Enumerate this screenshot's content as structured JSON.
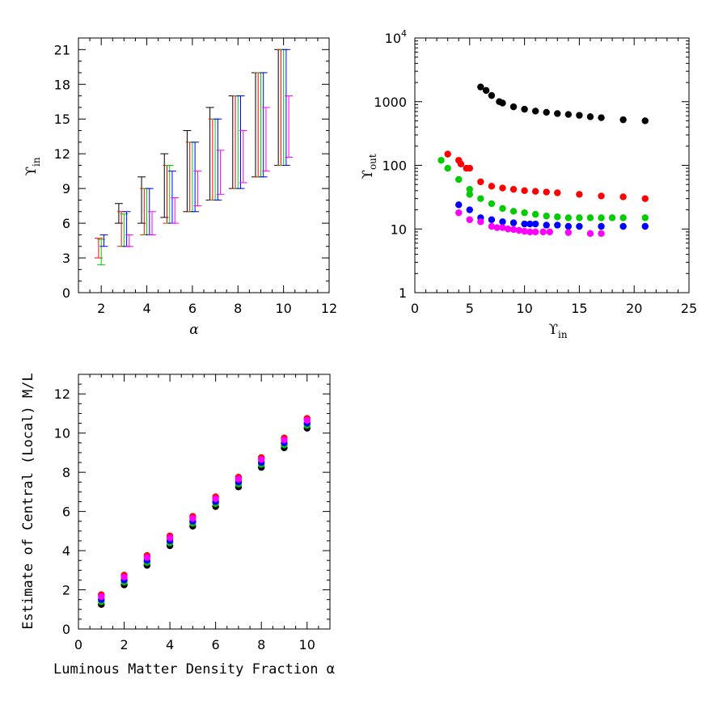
{
  "chart_data": [
    {
      "type": "errorbar",
      "xlabel": "α",
      "ylabel": "ϒ",
      "ylabel_sub": "in",
      "xlim": [
        1,
        12
      ],
      "ylim": [
        0,
        22
      ],
      "xticks": [
        2,
        4,
        6,
        8,
        10,
        12
      ],
      "yticks": [
        0,
        3,
        6,
        9,
        12,
        15,
        18,
        21
      ],
      "series_colors": [
        "#ff0000",
        "#00cc00",
        "#0000ff",
        "#ff00ff",
        "#000000"
      ],
      "groups": [
        {
          "alpha": 2,
          "bars": [
            {
              "c": "#ff0000",
              "lo": 3.0,
              "hi": 4.7
            },
            {
              "c": "#00cc00",
              "lo": 2.4,
              "hi": 4.6
            },
            {
              "c": "#0000ff",
              "lo": 4.0,
              "hi": 5.0
            }
          ]
        },
        {
          "alpha": 3,
          "bars": [
            {
              "c": "#000000",
              "lo": 6.0,
              "hi": 7.7
            },
            {
              "c": "#ff0000",
              "lo": 4.0,
              "hi": 7.0
            },
            {
              "c": "#00cc00",
              "lo": 4.0,
              "hi": 6.8
            },
            {
              "c": "#0000ff",
              "lo": 4.0,
              "hi": 7.0
            },
            {
              "c": "#ff00ff",
              "lo": 4.0,
              "hi": 5.0
            }
          ]
        },
        {
          "alpha": 4,
          "bars": [
            {
              "c": "#000000",
              "lo": 6.0,
              "hi": 10.0
            },
            {
              "c": "#ff0000",
              "lo": 5.0,
              "hi": 9.0
            },
            {
              "c": "#00cc00",
              "lo": 5.0,
              "hi": 9.0
            },
            {
              "c": "#0000ff",
              "lo": 5.0,
              "hi": 9.0
            },
            {
              "c": "#ff00ff",
              "lo": 5.0,
              "hi": 7.0
            }
          ]
        },
        {
          "alpha": 5,
          "bars": [
            {
              "c": "#000000",
              "lo": 6.5,
              "hi": 12.0
            },
            {
              "c": "#ff0000",
              "lo": 6.0,
              "hi": 11.0
            },
            {
              "c": "#00cc00",
              "lo": 6.0,
              "hi": 11.0
            },
            {
              "c": "#0000ff",
              "lo": 6.0,
              "hi": 10.5
            },
            {
              "c": "#ff00ff",
              "lo": 6.0,
              "hi": 8.2
            }
          ]
        },
        {
          "alpha": 6,
          "bars": [
            {
              "c": "#000000",
              "lo": 7.0,
              "hi": 14.0
            },
            {
              "c": "#ff0000",
              "lo": 7.0,
              "hi": 13.0
            },
            {
              "c": "#00cc00",
              "lo": 7.0,
              "hi": 13.0
            },
            {
              "c": "#0000ff",
              "lo": 7.0,
              "hi": 13.0
            },
            {
              "c": "#ff00ff",
              "lo": 7.5,
              "hi": 10.5
            }
          ]
        },
        {
          "alpha": 7,
          "bars": [
            {
              "c": "#000000",
              "lo": 8.0,
              "hi": 16.0
            },
            {
              "c": "#ff0000",
              "lo": 8.0,
              "hi": 15.0
            },
            {
              "c": "#00cc00",
              "lo": 8.0,
              "hi": 15.0
            },
            {
              "c": "#0000ff",
              "lo": 8.0,
              "hi": 15.0
            },
            {
              "c": "#ff00ff",
              "lo": 8.5,
              "hi": 12.3
            }
          ]
        },
        {
          "alpha": 8,
          "bars": [
            {
              "c": "#000000",
              "lo": 9.0,
              "hi": 17.0
            },
            {
              "c": "#ff0000",
              "lo": 9.0,
              "hi": 17.0
            },
            {
              "c": "#00cc00",
              "lo": 9.0,
              "hi": 17.0
            },
            {
              "c": "#0000ff",
              "lo": 9.0,
              "hi": 17.0
            },
            {
              "c": "#ff00ff",
              "lo": 9.5,
              "hi": 14.0
            }
          ]
        },
        {
          "alpha": 9,
          "bars": [
            {
              "c": "#000000",
              "lo": 10.0,
              "hi": 19.0
            },
            {
              "c": "#ff0000",
              "lo": 10.0,
              "hi": 19.0
            },
            {
              "c": "#00cc00",
              "lo": 10.0,
              "hi": 19.0
            },
            {
              "c": "#0000ff",
              "lo": 10.0,
              "hi": 19.0
            },
            {
              "c": "#ff00ff",
              "lo": 10.5,
              "hi": 16.0
            }
          ]
        },
        {
          "alpha": 10,
          "bars": [
            {
              "c": "#000000",
              "lo": 11.0,
              "hi": 21.0
            },
            {
              "c": "#ff0000",
              "lo": 11.0,
              "hi": 21.0
            },
            {
              "c": "#00cc00",
              "lo": 11.0,
              "hi": 21.0
            },
            {
              "c": "#0000ff",
              "lo": 11.0,
              "hi": 21.0
            },
            {
              "c": "#ff00ff",
              "lo": 11.7,
              "hi": 17.0
            }
          ]
        }
      ]
    },
    {
      "type": "scatter",
      "xlabel": "ϒ",
      "xlabel_sub": "in",
      "ylabel": "ϒ",
      "ylabel_sub": "out",
      "xlim": [
        0,
        25
      ],
      "ylim": [
        1,
        10000
      ],
      "yscale": "log",
      "xticks": [
        0,
        5,
        10,
        15,
        20,
        25
      ],
      "yticks": [
        {
          "value": 1,
          "label": "1"
        },
        {
          "value": 10,
          "label": "10"
        },
        {
          "value": 100,
          "label": "100"
        },
        {
          "value": 1000,
          "label": "1000"
        },
        {
          "value": 10000,
          "label": "10",
          "sup": "4"
        }
      ],
      "series": [
        {
          "color": "#000000",
          "points": [
            [
              6.0,
              1700
            ],
            [
              6.5,
              1500
            ],
            [
              7.0,
              1250
            ],
            [
              7.7,
              1000
            ],
            [
              8.0,
              950
            ],
            [
              9.0,
              830
            ],
            [
              10.0,
              760
            ],
            [
              11.0,
              710
            ],
            [
              12.0,
              680
            ],
            [
              13.0,
              650
            ],
            [
              14.0,
              630
            ],
            [
              15.0,
              610
            ],
            [
              16.0,
              580
            ],
            [
              17.0,
              560
            ],
            [
              19.0,
              520
            ],
            [
              21.0,
              500
            ]
          ]
        },
        {
          "color": "#ff0000",
          "points": [
            [
              3.0,
              150
            ],
            [
              4.0,
              120
            ],
            [
              4.2,
              105
            ],
            [
              4.7,
              90
            ],
            [
              5.0,
              90
            ],
            [
              6.0,
              55
            ],
            [
              7.0,
              47
            ],
            [
              8.0,
              44
            ],
            [
              9.0,
              42
            ],
            [
              10.0,
              40
            ],
            [
              11.0,
              39
            ],
            [
              12.0,
              38
            ],
            [
              13.0,
              37
            ],
            [
              15.0,
              35
            ],
            [
              17.0,
              33
            ],
            [
              19.0,
              32
            ],
            [
              21.0,
              30
            ]
          ]
        },
        {
          "color": "#00cc00",
          "points": [
            [
              2.4,
              120
            ],
            [
              3.0,
              90
            ],
            [
              4.0,
              60
            ],
            [
              5.0,
              42
            ],
            [
              5.0,
              35
            ],
            [
              6.0,
              30
            ],
            [
              7.0,
              25
            ],
            [
              8.0,
              21
            ],
            [
              9.0,
              19
            ],
            [
              10.0,
              18
            ],
            [
              11.0,
              17
            ],
            [
              12.0,
              16
            ],
            [
              13.0,
              15.5
            ],
            [
              14.0,
              15
            ],
            [
              15.0,
              15
            ],
            [
              16.0,
              15
            ],
            [
              17.0,
              15
            ],
            [
              18.0,
              15
            ],
            [
              19.0,
              15
            ],
            [
              21.0,
              15
            ]
          ]
        },
        {
          "color": "#0000ff",
          "points": [
            [
              4.0,
              24
            ],
            [
              5.0,
              20
            ],
            [
              6.0,
              15
            ],
            [
              7.0,
              14
            ],
            [
              8.0,
              13
            ],
            [
              9.0,
              12.5
            ],
            [
              10.0,
              12
            ],
            [
              10.5,
              12
            ],
            [
              11.0,
              12
            ],
            [
              12.0,
              11.5
            ],
            [
              13.0,
              11.5
            ],
            [
              14.0,
              11
            ],
            [
              15.0,
              11
            ],
            [
              17.0,
              11
            ],
            [
              19.0,
              11
            ],
            [
              21.0,
              11
            ]
          ]
        },
        {
          "color": "#ff00ff",
          "points": [
            [
              4.0,
              18
            ],
            [
              5.0,
              14
            ],
            [
              6.0,
              13
            ],
            [
              7.0,
              11
            ],
            [
              7.5,
              10.5
            ],
            [
              8.0,
              10.5
            ],
            [
              8.5,
              10
            ],
            [
              9.0,
              9.8
            ],
            [
              9.5,
              9.5
            ],
            [
              10.0,
              9.2
            ],
            [
              10.5,
              9
            ],
            [
              11.0,
              9
            ],
            [
              11.7,
              9
            ],
            [
              12.3,
              9
            ],
            [
              14.0,
              8.8
            ],
            [
              16.0,
              8.5
            ],
            [
              17.0,
              8.5
            ]
          ]
        }
      ]
    },
    {
      "type": "scatter",
      "xlabel": "Luminous Matter Density Fraction α",
      "ylabel": "Estimate of Central (Local) M/L",
      "xlim": [
        0,
        11
      ],
      "ylim": [
        0,
        13
      ],
      "xticks": [
        0,
        2,
        4,
        6,
        8,
        10
      ],
      "yticks": [
        0,
        2,
        4,
        6,
        8,
        10,
        12
      ],
      "series": [
        {
          "color": "#000000",
          "x": [
            1,
            2,
            3,
            4,
            5,
            6,
            7,
            8,
            9,
            10
          ],
          "y": [
            1.25,
            2.25,
            3.25,
            4.25,
            5.25,
            6.25,
            7.25,
            8.25,
            9.25,
            10.25
          ]
        },
        {
          "color": "#00cc00",
          "x": [
            1,
            2,
            3,
            4,
            5,
            6,
            7,
            8,
            9,
            10
          ],
          "y": [
            1.4,
            2.4,
            3.4,
            4.4,
            5.4,
            6.4,
            7.4,
            8.4,
            9.4,
            10.4
          ]
        },
        {
          "color": "#0000ff",
          "x": [
            1,
            2,
            3,
            4,
            5,
            6,
            7,
            8,
            9,
            10
          ],
          "y": [
            1.5,
            2.5,
            3.5,
            4.5,
            5.5,
            6.5,
            7.5,
            8.5,
            9.5,
            10.5
          ]
        },
        {
          "color": "#ff0000",
          "x": [
            1,
            2,
            3,
            4,
            5,
            6,
            7,
            8,
            9,
            10
          ],
          "y": [
            1.75,
            2.75,
            3.75,
            4.75,
            5.75,
            6.75,
            7.75,
            8.75,
            9.75,
            10.75
          ]
        },
        {
          "color": "#ff00ff",
          "x": [
            1,
            2,
            3,
            4,
            5,
            6,
            7,
            8,
            9,
            10
          ],
          "y": [
            1.65,
            2.65,
            3.65,
            4.65,
            5.65,
            6.65,
            7.65,
            8.65,
            9.65,
            10.65
          ]
        }
      ]
    }
  ]
}
